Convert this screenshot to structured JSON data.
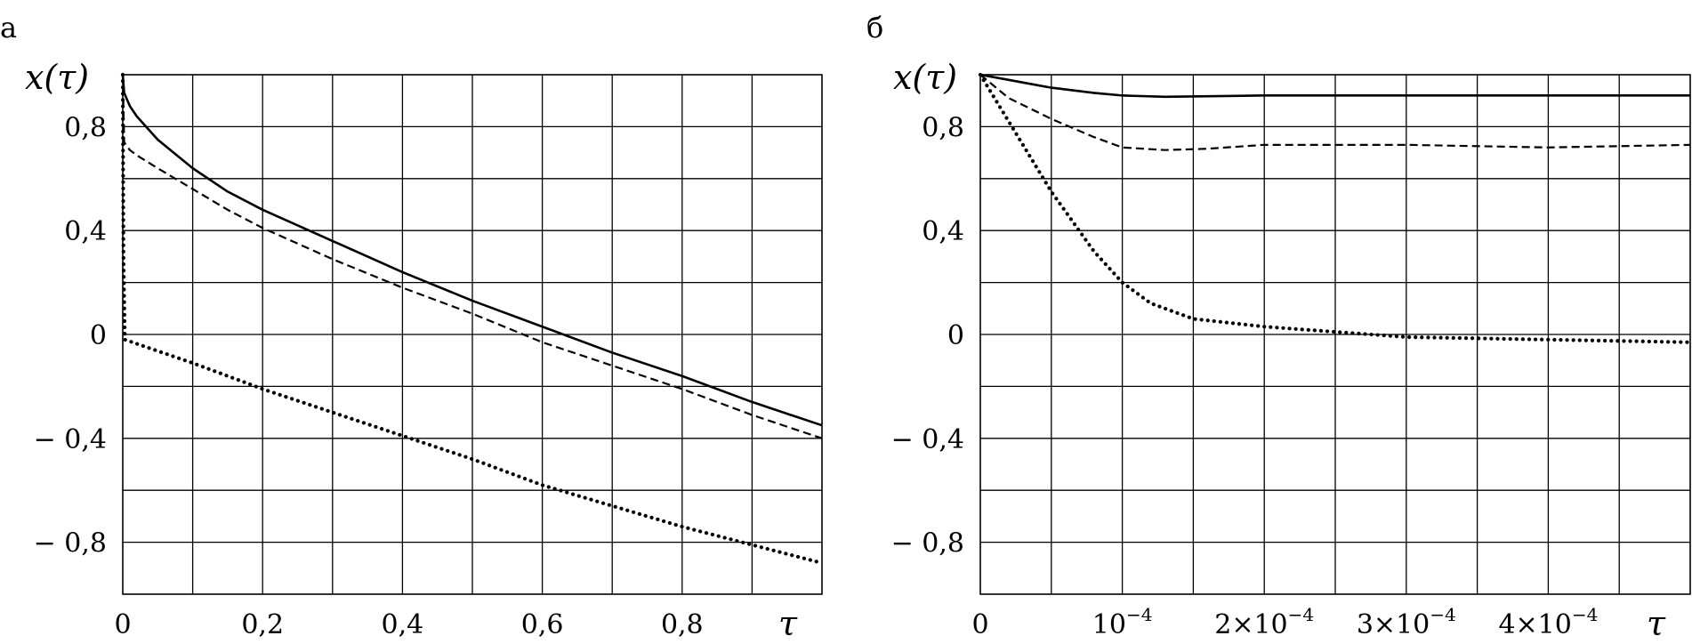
{
  "chart_data": [
    {
      "type": "line",
      "panel_label": "а",
      "ylabel": "x(τ)",
      "xlabel": "τ",
      "xlim": [
        0,
        1
      ],
      "ylim": [
        -1,
        1
      ],
      "grid": true,
      "x_ticks": [
        0,
        0.2,
        0.4,
        0.6,
        0.8
      ],
      "x_tick_labels": [
        "0",
        "0,2",
        "0,4",
        "0,6",
        "0,8"
      ],
      "y_ticks": [
        0.8,
        0.4,
        0,
        -0.4,
        -0.8
      ],
      "y_tick_labels": [
        "0,8",
        "0,4",
        "0",
        "− 0,4",
        "− 0,8"
      ],
      "series": [
        {
          "style": "solid",
          "x": [
            0,
            0.002,
            0.01,
            0.02,
            0.05,
            0.1,
            0.15,
            0.2,
            0.3,
            0.4,
            0.5,
            0.6,
            0.7,
            0.8,
            0.9,
            1.0
          ],
          "y": [
            1.0,
            0.93,
            0.88,
            0.84,
            0.75,
            0.64,
            0.55,
            0.48,
            0.36,
            0.24,
            0.13,
            0.03,
            -0.07,
            -0.16,
            -0.26,
            -0.35
          ]
        },
        {
          "style": "dashed",
          "x": [
            0,
            0.002,
            0.01,
            0.02,
            0.05,
            0.1,
            0.15,
            0.2,
            0.3,
            0.4,
            0.5,
            0.6,
            0.7,
            0.8,
            0.9,
            1.0
          ],
          "y": [
            1.0,
            0.74,
            0.71,
            0.69,
            0.64,
            0.56,
            0.48,
            0.41,
            0.29,
            0.18,
            0.08,
            -0.03,
            -0.12,
            -0.21,
            -0.31,
            -0.4
          ]
        },
        {
          "style": "dotted",
          "x": [
            0,
            0.001,
            0.003,
            0.1,
            0.2,
            0.3,
            0.4,
            0.5,
            0.6,
            0.7,
            0.8,
            0.9,
            1.0
          ],
          "y": [
            1.0,
            0.3,
            -0.02,
            -0.11,
            -0.21,
            -0.3,
            -0.39,
            -0.48,
            -0.58,
            -0.66,
            -0.74,
            -0.81,
            -0.88
          ]
        }
      ]
    },
    {
      "type": "line",
      "panel_label": "б",
      "ylabel": "x(τ)",
      "xlabel": "τ",
      "xlim": [
        0,
        0.0005
      ],
      "ylim": [
        -1,
        1
      ],
      "grid": true,
      "x_ticks": [
        0,
        0.0001,
        0.0002,
        0.0003,
        0.0004
      ],
      "x_tick_labels": [
        {
          "base": "0",
          "exp": ""
        },
        {
          "base": "10",
          "exp": "−4"
        },
        {
          "base": "2×10",
          "exp": "−4"
        },
        {
          "base": "3×10",
          "exp": "−4"
        },
        {
          "base": "4×10",
          "exp": "−4"
        }
      ],
      "y_ticks": [
        0.8,
        0.4,
        0,
        -0.4,
        -0.8
      ],
      "y_tick_labels": [
        "0,8",
        "0,4",
        "0",
        "− 0,4",
        "− 0,8"
      ],
      "series": [
        {
          "style": "solid",
          "x": [
            0,
            2e-05,
            5e-05,
            8e-05,
            0.0001,
            0.00013,
            0.0002,
            0.0003,
            0.0004,
            0.0005
          ],
          "y": [
            1.0,
            0.98,
            0.95,
            0.93,
            0.92,
            0.915,
            0.92,
            0.92,
            0.92,
            0.92
          ]
        },
        {
          "style": "dashed",
          "x": [
            0,
            2e-05,
            5e-05,
            8e-05,
            0.0001,
            0.00013,
            0.00016,
            0.0002,
            0.0003,
            0.0004,
            0.0005
          ],
          "y": [
            1.0,
            0.91,
            0.83,
            0.76,
            0.72,
            0.71,
            0.715,
            0.73,
            0.73,
            0.72,
            0.73
          ]
        },
        {
          "style": "dotted",
          "x": [
            0,
            2e-05,
            5e-05,
            8e-05,
            0.0001,
            0.00012,
            0.00015,
            0.0002,
            0.00025,
            0.0003,
            0.0004,
            0.0005
          ],
          "y": [
            1.0,
            0.82,
            0.55,
            0.32,
            0.2,
            0.12,
            0.06,
            0.03,
            0.01,
            -0.01,
            -0.02,
            -0.03
          ]
        }
      ]
    }
  ]
}
